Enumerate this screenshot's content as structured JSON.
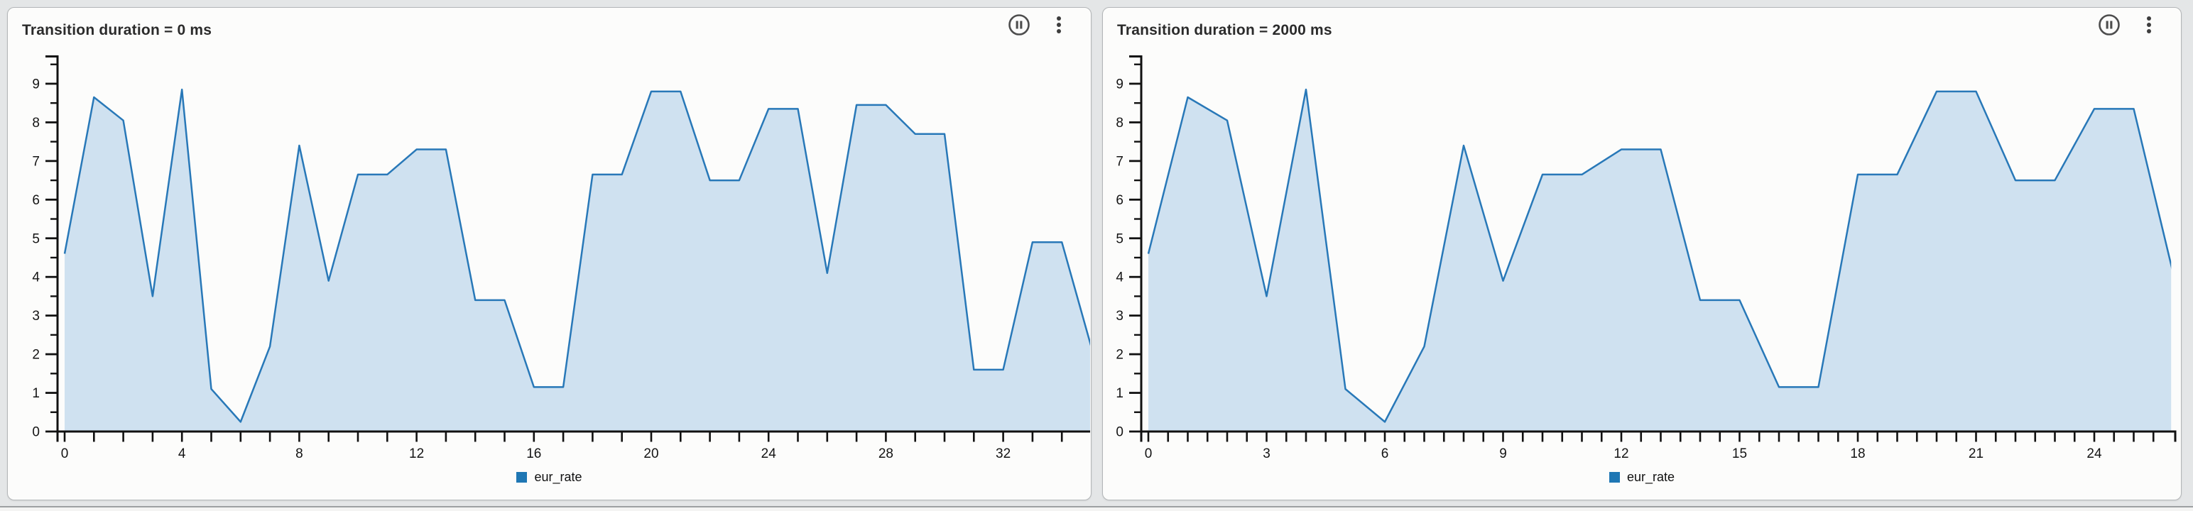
{
  "panels": [
    {
      "title": "Transition duration = 0 ms",
      "legend_label": "eur_rate",
      "header_icons": [
        "pause-circle-icon",
        "kebab-menu-icon"
      ]
    },
    {
      "title": "Transition duration = 2000 ms",
      "legend_label": "eur_rate",
      "header_icons": [
        "pause-circle-icon",
        "kebab-menu-icon"
      ]
    }
  ],
  "colors": {
    "area_line": "#2878b8",
    "area_fill": "#cfe1f0",
    "legend_square": "#1f77b4",
    "axis": "#111111",
    "tick_label": "#141414"
  },
  "chart_data": [
    {
      "type": "area",
      "title": "Transition duration = 0 ms",
      "legend": [
        "eur_rate"
      ],
      "legend_position": "bottom",
      "x": [
        0,
        1,
        2,
        3,
        4,
        5,
        6,
        7,
        8,
        9,
        10,
        11,
        12,
        13,
        14,
        15,
        16,
        17,
        18,
        19,
        20,
        21,
        22,
        23,
        24,
        25,
        26,
        27,
        28,
        29,
        30,
        31,
        32,
        33,
        34,
        35
      ],
      "values": [
        4.6,
        8.65,
        8.05,
        3.5,
        8.85,
        1.1,
        0.25,
        2.2,
        7.4,
        3.9,
        6.65,
        6.65,
        7.3,
        7.3,
        3.4,
        3.4,
        1.15,
        1.15,
        6.65,
        6.65,
        8.8,
        8.8,
        6.5,
        6.5,
        8.35,
        8.35,
        4.1,
        8.45,
        8.45,
        7.7,
        7.7,
        1.6,
        1.6,
        4.9,
        4.9,
        2.2
      ],
      "x_tick_labels": [
        0,
        4,
        8,
        12,
        16,
        20,
        24,
        28,
        32
      ],
      "x_minor_step": 1,
      "y_tick_labels": [
        0,
        1,
        2,
        3,
        4,
        5,
        6,
        7,
        8,
        9
      ],
      "y_minor_step": 0.5,
      "xlim": [
        0,
        35.2
      ],
      "ylim": [
        0,
        9.73
      ],
      "grid": false
    },
    {
      "type": "area",
      "title": "Transition duration = 2000 ms",
      "legend": [
        "eur_rate"
      ],
      "legend_position": "bottom",
      "x": [
        0,
        1,
        2,
        3,
        4,
        5,
        6,
        7,
        8,
        9,
        10,
        11,
        12,
        13,
        14,
        15,
        16,
        17,
        18,
        19,
        20,
        21,
        22,
        23,
        24,
        25,
        26
      ],
      "values": [
        4.6,
        8.65,
        8.05,
        3.5,
        8.85,
        1.1,
        0.25,
        2.2,
        7.4,
        3.9,
        6.65,
        6.65,
        7.3,
        7.3,
        3.4,
        3.4,
        1.15,
        1.15,
        6.65,
        6.65,
        8.8,
        8.8,
        6.5,
        6.5,
        8.35,
        8.35,
        4.1
      ],
      "x_tick_labels": [
        0,
        3,
        6,
        9,
        12,
        15,
        18,
        21,
        24
      ],
      "x_minor_step": 0.5,
      "y_tick_labels": [
        0,
        1,
        2,
        3,
        4,
        5,
        6,
        7,
        8,
        9
      ],
      "y_minor_step": 0.5,
      "xlim": [
        0,
        25.95
      ],
      "ylim": [
        0,
        9.73
      ],
      "grid": false
    }
  ]
}
